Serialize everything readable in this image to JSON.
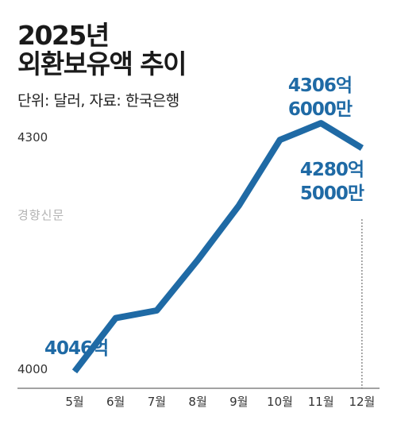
{
  "header": {
    "title_year": "2025년",
    "title_main": "외환보유액 추이",
    "source": "단위: 달러, 자료: 한국은행",
    "watermark": "경향신문"
  },
  "colors": {
    "line": "#1f6aa5",
    "label": "#1f6aa5",
    "axis": "#444444",
    "guide": "#555555"
  },
  "chart_data": {
    "type": "line",
    "title": "2025년 외환보유액 추이",
    "xlabel": "",
    "ylabel": "",
    "unit": "달러",
    "categories": [
      "5월",
      "6월",
      "7월",
      "8월",
      "9월",
      "10월",
      "11월",
      "12월"
    ],
    "series": [
      {
        "values": [
          4046,
          4102,
          4110,
          4163,
          4220,
          4289,
          4306.6,
          4280.5
        ]
      }
    ],
    "y_ticks": [
      {
        "value": 4000,
        "label": "4000"
      },
      {
        "value": 4300,
        "label": "4300"
      }
    ],
    "ylim": [
      4000,
      4300
    ],
    "grid": false,
    "data_labels": [
      {
        "index": 0,
        "lines": [
          "4046억"
        ]
      },
      {
        "index": 6,
        "lines": [
          "4306억",
          "6000만"
        ]
      },
      {
        "index": 7,
        "lines": [
          "4280억",
          "5000만"
        ]
      }
    ]
  }
}
